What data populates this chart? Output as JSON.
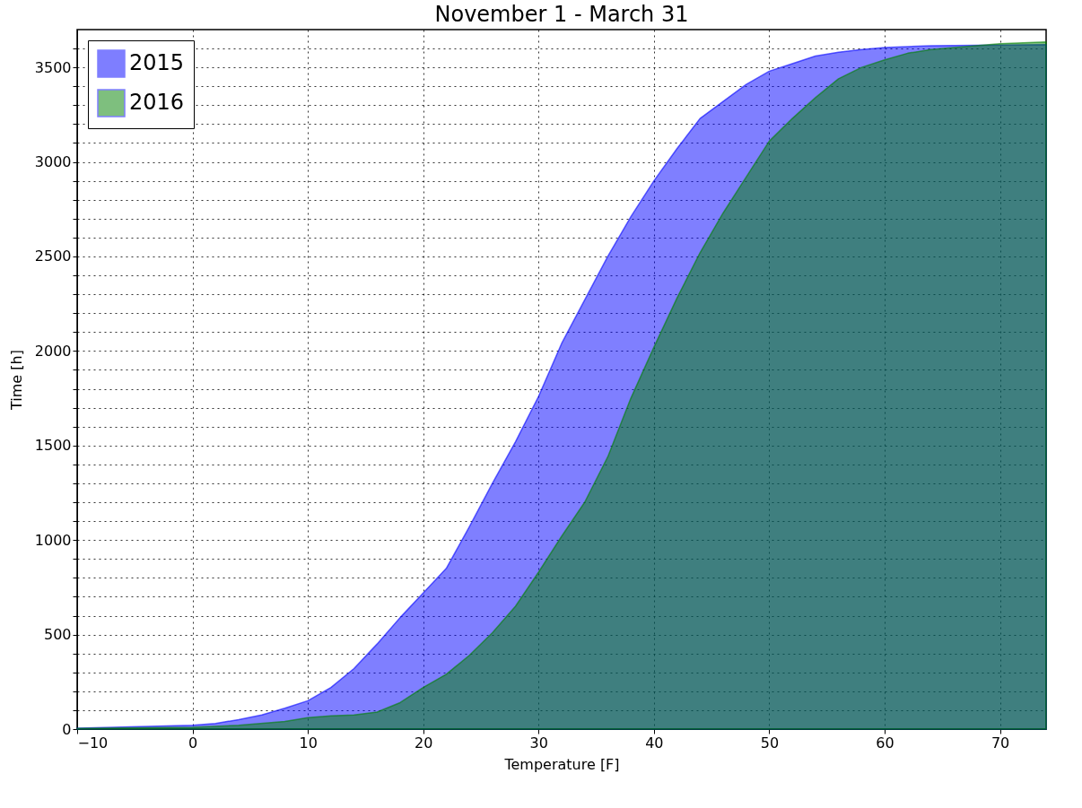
{
  "chart_data": {
    "type": "area",
    "title": "November 1 - March 31",
    "xlabel": "Temperature [F]",
    "ylabel": "Time [h]",
    "xlim": [
      -10,
      74
    ],
    "ylim": [
      0,
      3700
    ],
    "xticks": [
      {
        "value": -10,
        "label": "−10"
      },
      0,
      10,
      20,
      30,
      40,
      50,
      60,
      70
    ],
    "yticks": [
      0,
      {
        "value": 100,
        "label": null
      },
      {
        "value": 200,
        "label": null
      },
      {
        "value": 300,
        "label": null
      },
      {
        "value": 400,
        "label": null
      },
      500,
      {
        "value": 600,
        "label": null
      },
      {
        "value": 700,
        "label": null
      },
      {
        "value": 800,
        "label": null
      },
      {
        "value": 900,
        "label": null
      },
      1000,
      {
        "value": 1100,
        "label": null
      },
      {
        "value": 1200,
        "label": null
      },
      {
        "value": 1300,
        "label": null
      },
      {
        "value": 1400,
        "label": null
      },
      1500,
      {
        "value": 1600,
        "label": null
      },
      {
        "value": 1700,
        "label": null
      },
      {
        "value": 1800,
        "label": null
      },
      {
        "value": 1900,
        "label": null
      },
      2000,
      {
        "value": 2100,
        "label": null
      },
      {
        "value": 2200,
        "label": null
      },
      {
        "value": 2300,
        "label": null
      },
      {
        "value": 2400,
        "label": null
      },
      2500,
      {
        "value": 2600,
        "label": null
      },
      {
        "value": 2700,
        "label": null
      },
      {
        "value": 2800,
        "label": null
      },
      {
        "value": 2900,
        "label": null
      },
      3000,
      {
        "value": 3100,
        "label": null
      },
      {
        "value": 3200,
        "label": null
      },
      {
        "value": 3300,
        "label": null
      },
      {
        "value": 3400,
        "label": null
      },
      3500,
      {
        "value": 3600,
        "label": null
      }
    ],
    "grid": true,
    "legend": "top left",
    "series": [
      {
        "name": "2015",
        "color": "#0000ff",
        "x": [
          -10,
          0,
          2,
          4,
          6,
          8,
          10,
          12,
          14,
          16,
          18,
          20,
          22,
          24,
          26,
          28,
          30,
          32,
          34,
          36,
          38,
          40,
          42,
          44,
          46,
          48,
          50,
          52,
          54,
          56,
          58,
          60,
          64,
          74
        ],
        "values": [
          5,
          20,
          30,
          50,
          75,
          110,
          150,
          220,
          320,
          450,
          590,
          720,
          850,
          1070,
          1300,
          1520,
          1760,
          2040,
          2270,
          2500,
          2710,
          2900,
          3070,
          3230,
          3320,
          3410,
          3480,
          3520,
          3560,
          3580,
          3595,
          3605,
          3615,
          3620
        ]
      },
      {
        "name": "2016",
        "color": "#008000",
        "x": [
          -10,
          0,
          4,
          8,
          10,
          12,
          14,
          16,
          18,
          20,
          22,
          24,
          26,
          28,
          30,
          32,
          34,
          36,
          38,
          40,
          42,
          44,
          46,
          48,
          50,
          52,
          54,
          56,
          58,
          60,
          62,
          64,
          66,
          70,
          74
        ],
        "values": [
          3,
          10,
          20,
          40,
          60,
          70,
          75,
          90,
          140,
          220,
          290,
          390,
          510,
          650,
          830,
          1020,
          1200,
          1440,
          1750,
          2020,
          2280,
          2520,
          2730,
          2920,
          3110,
          3230,
          3340,
          3440,
          3500,
          3540,
          3575,
          3595,
          3605,
          3625,
          3635
        ]
      }
    ]
  }
}
